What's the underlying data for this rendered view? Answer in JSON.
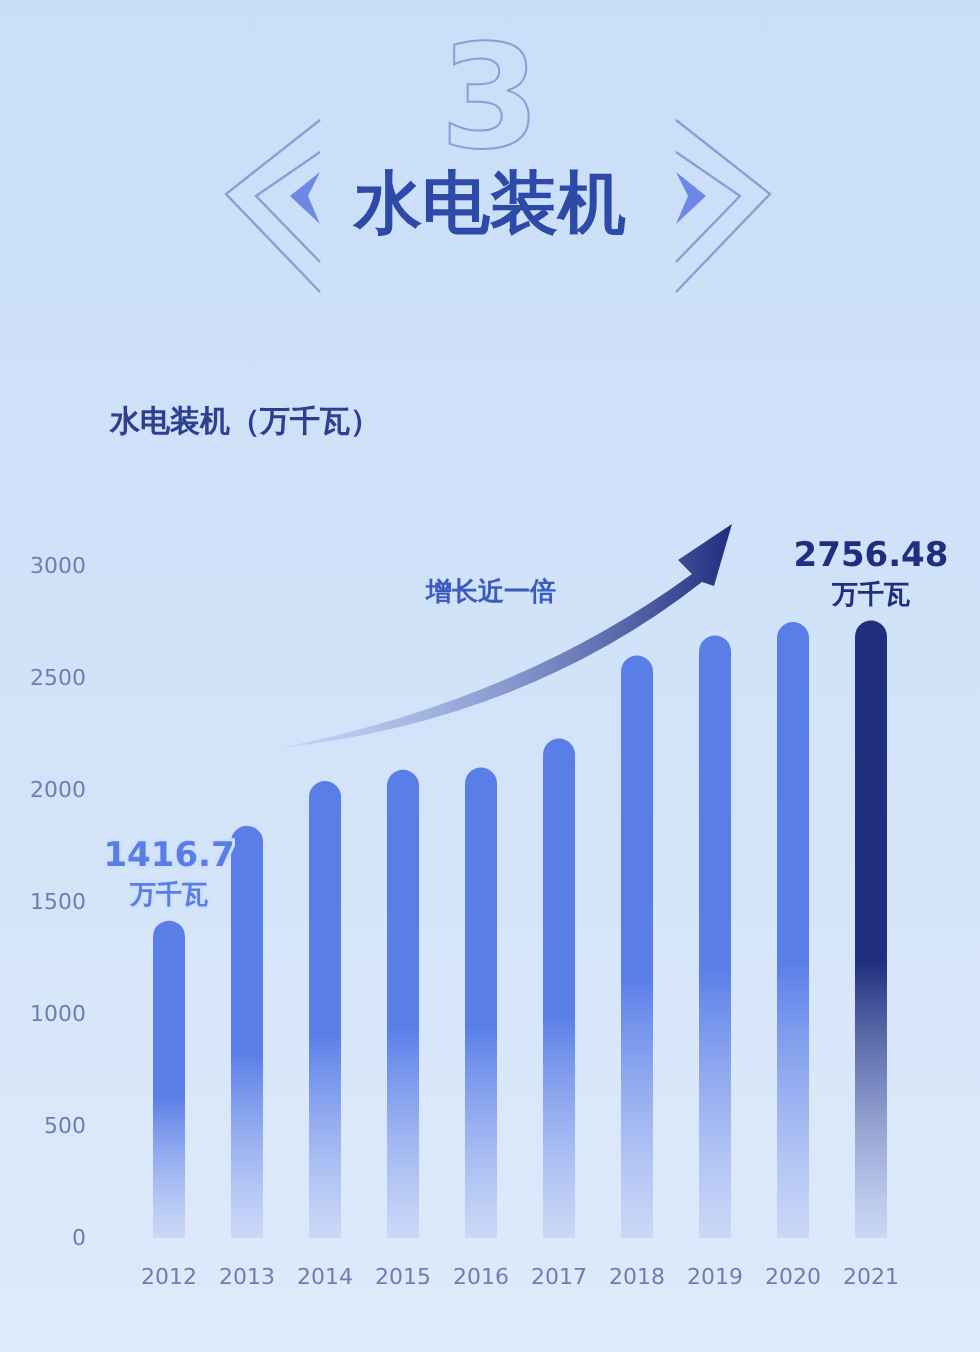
{
  "chart_data": {
    "type": "bar",
    "title": "水电装机",
    "subtitle": "3",
    "ylabel": "水电装机（万千瓦）",
    "categories": [
      "2012",
      "2013",
      "2014",
      "2015",
      "2016",
      "2017",
      "2018",
      "2019",
      "2020",
      "2021"
    ],
    "values": [
      1416.7,
      1840,
      2040,
      2090,
      2100,
      2230,
      2600,
      2690,
      2750,
      2756.48
    ],
    "colors": [
      "#5a7ee8",
      "#5a7ee8",
      "#5a7ee8",
      "#5a7ee8",
      "#5a7ee8",
      "#5a7ee8",
      "#5a7ee8",
      "#5a7ee8",
      "#5a7ee8",
      "#1f2e7e"
    ],
    "value_labels": [
      "1416.7",
      null,
      null,
      null,
      null,
      null,
      null,
      null,
      null,
      "2756.48"
    ],
    "annotations": [
      {
        "text": "万千瓦",
        "x": "2012",
        "y": 1416.7
      },
      {
        "text": "万千瓦",
        "x": "2021",
        "y": 2756.48
      },
      "增长近一倍"
    ],
    "ylim": [
      0,
      3000
    ],
    "yticks": [
      0,
      500,
      1000,
      1500,
      2000,
      2500,
      3000
    ],
    "grid": false
  }
}
